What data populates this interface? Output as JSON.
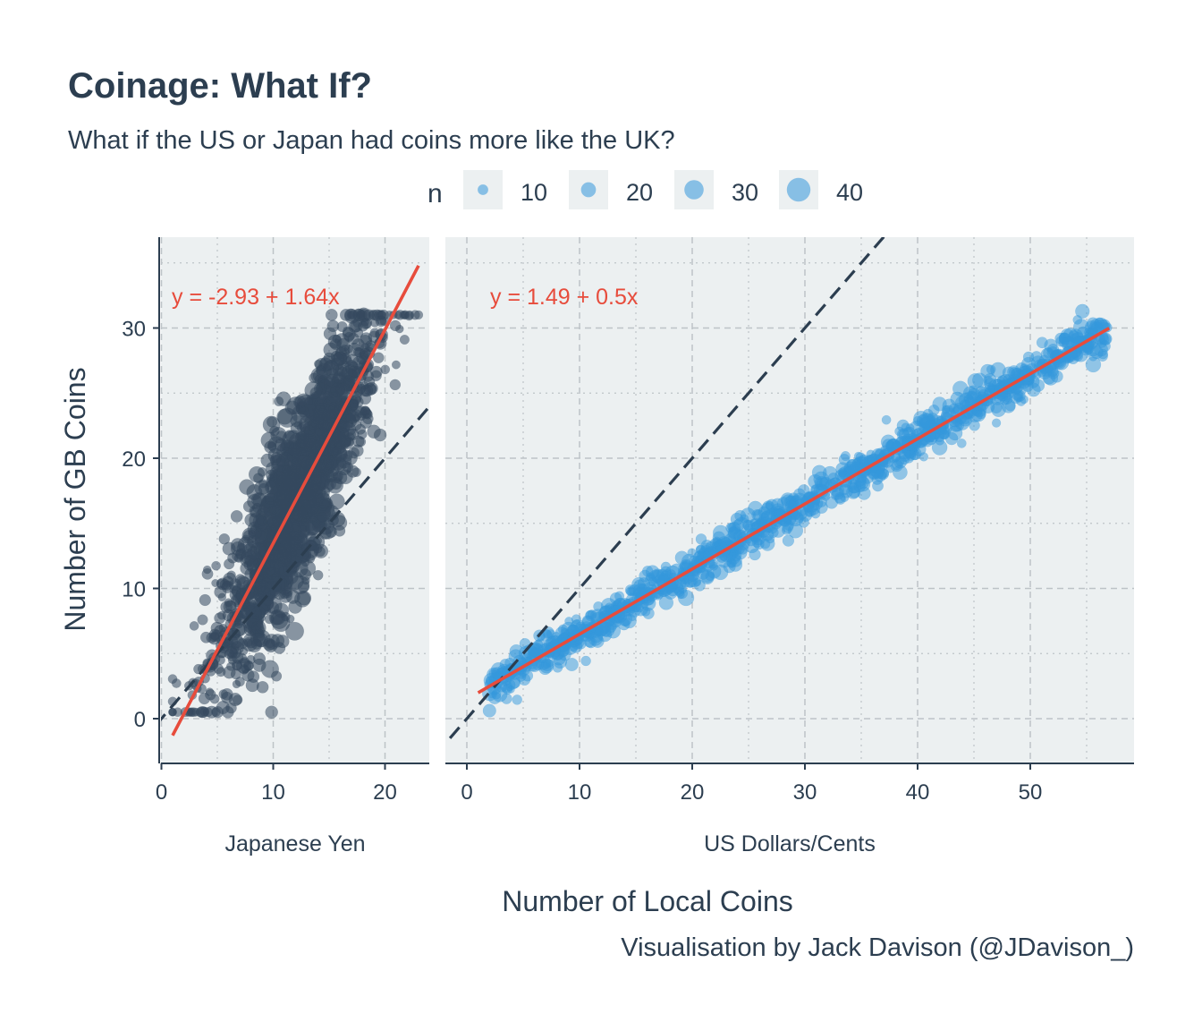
{
  "title": "Coinage: What If?",
  "subtitle": "What if the US or Japan had coins more like the UK?",
  "caption": "Visualisation by Jack Davison (@JDavison_)",
  "legend": {
    "title": "n",
    "entries": [
      {
        "label": "10",
        "value": 10
      },
      {
        "label": "20",
        "value": 20
      },
      {
        "label": "30",
        "value": 30
      },
      {
        "label": "40",
        "value": 40
      }
    ]
  },
  "colors": {
    "text": "#2c3e50",
    "panel_bg": "#ecf0f1",
    "fit_line": "#e74c3c",
    "identity_line": "#2c3e50",
    "yen_points": "#34495e",
    "usd_points": "#3498db"
  },
  "chart_data": {
    "type": "scatter",
    "y_label": "Number of GB Coins",
    "x_label": "Number of Local Coins",
    "y_ticks": [
      "0",
      "10",
      "20",
      "30"
    ],
    "y_range": [
      -3.5,
      36.5
    ],
    "size_variable": "n",
    "reference_line": "y = x (dashed)",
    "grid": true,
    "legend_position": "top",
    "panels": [
      {
        "name": "Japanese Yen",
        "x_ticks": [
          "0",
          "10",
          "20"
        ],
        "x_range": [
          -0.5,
          24
        ],
        "equation": "y = -2.93 + 1.64x",
        "fit": {
          "intercept": -2.93,
          "slope": 1.64,
          "x_from": 1,
          "x_to": 23
        },
        "point_spread": {
          "x_from": 1,
          "x_to": 23,
          "y_sd": 3.4
        },
        "point_color_key": "yen_points"
      },
      {
        "name": "US Dollars/Cents",
        "x_ticks": [
          "0",
          "10",
          "20",
          "30",
          "40",
          "50"
        ],
        "x_range": [
          -1.5,
          59.5
        ],
        "equation": "y = 1.49 + 0.5x",
        "fit": {
          "intercept": 1.49,
          "slope": 0.5,
          "x_from": 1,
          "x_to": 57
        },
        "point_spread": {
          "x_from": 2,
          "x_to": 57,
          "y_sd": 0.75
        },
        "point_color_key": "usd_points"
      }
    ]
  }
}
